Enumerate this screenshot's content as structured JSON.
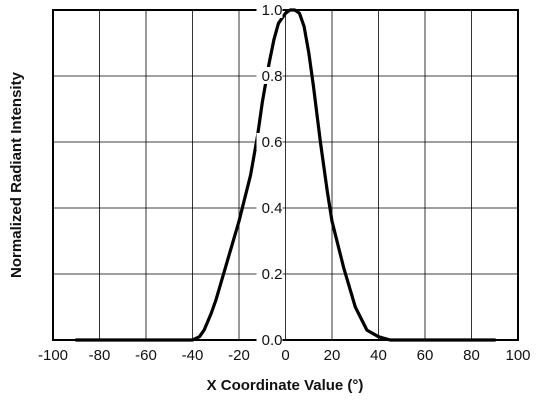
{
  "chart_data": {
    "type": "line",
    "title": "",
    "xlabel": "X Coordinate Value (°)",
    "ylabel": "Normalized Radiant Intensity",
    "xlim": [
      -100,
      100
    ],
    "ylim": [
      0,
      1.0
    ],
    "x_ticks": [
      -100,
      -80,
      -60,
      -40,
      -20,
      0,
      20,
      40,
      60,
      80,
      100
    ],
    "y_ticks": [
      "0.0",
      "0.2",
      "0.4",
      "0.6",
      "0.8",
      "1.0"
    ],
    "grid": true,
    "series": [
      {
        "x": [
          -90,
          -60,
          -40,
          -37,
          -35,
          -32,
          -30,
          -25,
          -20,
          -15,
          -12,
          -10,
          -7,
          -5,
          -3,
          0,
          2,
          4,
          6,
          8,
          10,
          12,
          15,
          18,
          20,
          25,
          30,
          35,
          40,
          45,
          50,
          70,
          90
        ],
        "y": [
          0.0,
          0.0,
          0.0,
          0.01,
          0.03,
          0.08,
          0.12,
          0.24,
          0.36,
          0.5,
          0.62,
          0.72,
          0.84,
          0.91,
          0.96,
          0.99,
          1.0,
          1.0,
          0.99,
          0.95,
          0.87,
          0.77,
          0.6,
          0.45,
          0.36,
          0.22,
          0.1,
          0.03,
          0.01,
          0.0,
          0.0,
          0.0,
          0.0
        ]
      }
    ]
  }
}
